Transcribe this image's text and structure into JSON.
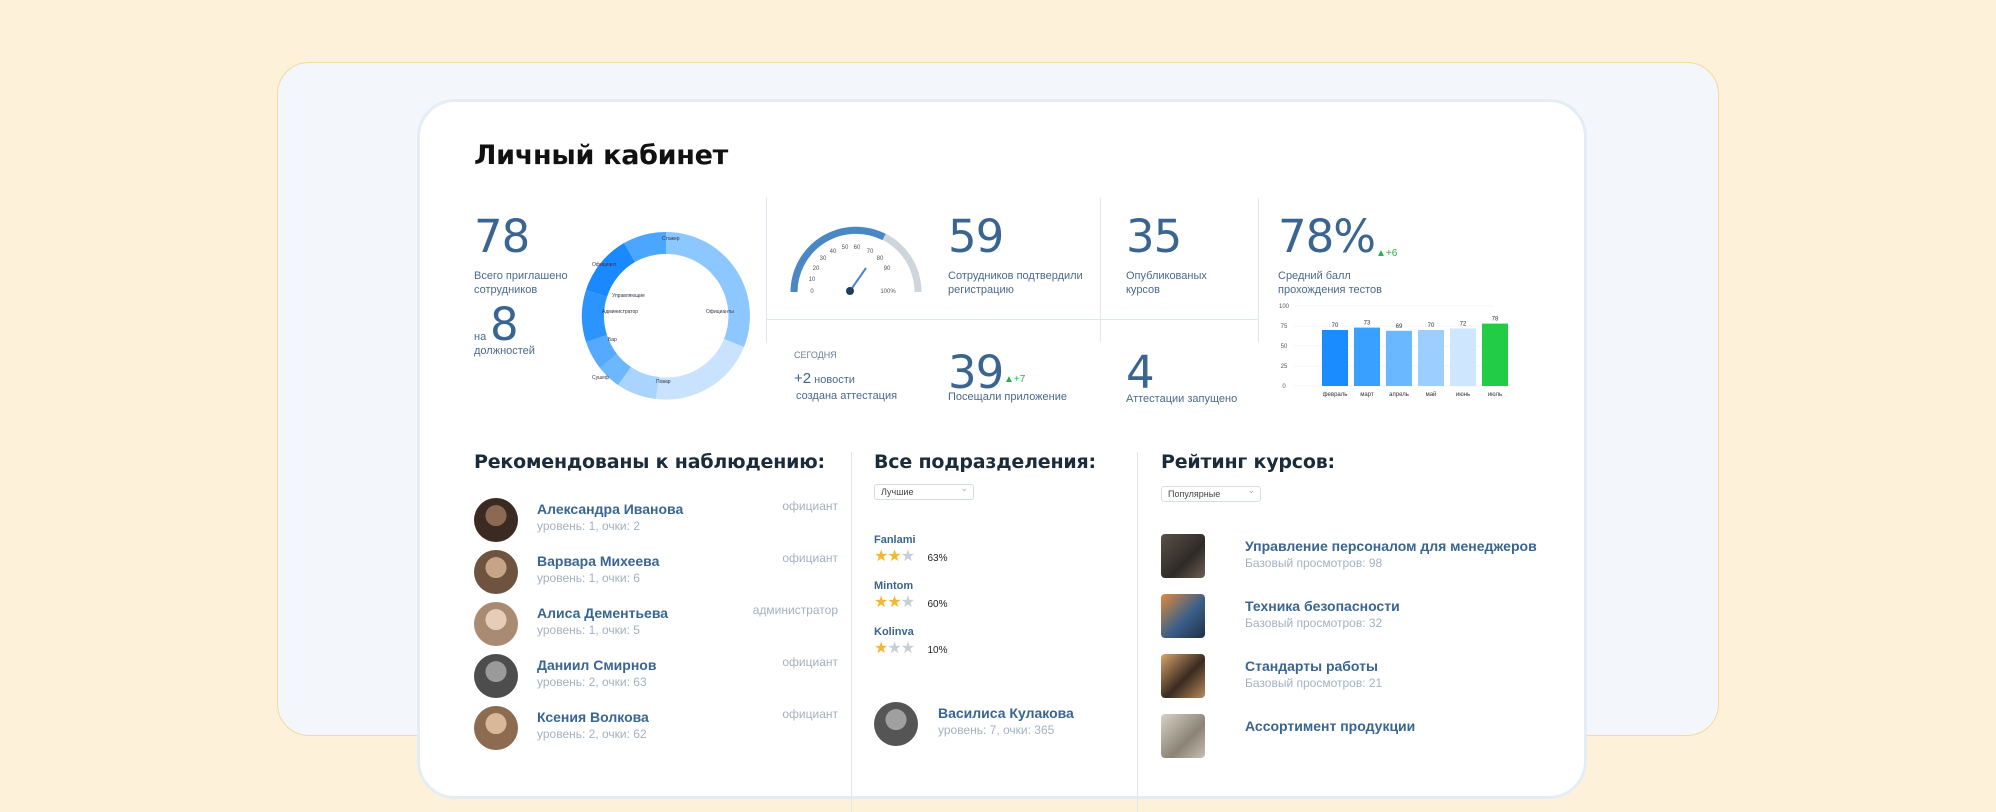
{
  "page": {
    "title": "Личный кабинет"
  },
  "stats": {
    "invited_value": "78",
    "invited_label_1": "Всего приглашено",
    "invited_label_2": "сотрудников",
    "positions_prefix": "на",
    "positions_value": "8",
    "positions_label": "должностей",
    "donut_labels": [
      "Стажер",
      "Официант",
      "Управляющие",
      "Администратор",
      "Бар",
      "Официанты",
      "Повар",
      "Сушеф"
    ],
    "gauge_ticks": [
      "0",
      "10",
      "20",
      "30",
      "40",
      "50",
      "60",
      "70",
      "80",
      "90",
      "100%"
    ],
    "confirmed_value": "59",
    "confirmed_label_1": "Сотрудников подтвердили",
    "confirmed_label_2": "регистрацию",
    "courses_value": "35",
    "courses_label_1": "Опубликованых",
    "courses_label_2": "курсов",
    "score_value": "78%",
    "score_delta": "+6",
    "score_label_1": "Средний балл",
    "score_label_2": "прохождения тестов",
    "today_label": "СЕГОДНЯ",
    "news_value": "+2",
    "news_label": "новости",
    "attest_created": "создана аттестация",
    "visits_value": "39",
    "visits_delta": "+7",
    "visits_label": "Посещали приложение",
    "attest_value": "4",
    "attest_label": "Аттестации запущено"
  },
  "chart_data": {
    "type": "bar",
    "categories": [
      "февраль",
      "март",
      "апрель",
      "май",
      "июнь",
      "июль"
    ],
    "values": [
      70,
      73,
      69,
      70,
      72,
      78
    ],
    "ylim": [
      0,
      100
    ],
    "yticks": [
      "0",
      "25",
      "50",
      "75",
      "100"
    ],
    "colors": [
      "#1a8cff",
      "#3aa0ff",
      "#6ab8ff",
      "#9ccfff",
      "#cfe6ff",
      "#22cc44"
    ]
  },
  "recommended": {
    "title": "Рекомендованы к наблюдению:",
    "people": [
      {
        "name": "Александра Иванова",
        "sub": "уровень: 1, очки: 2",
        "role": "официант"
      },
      {
        "name": "Варвара Михеева",
        "sub": "уровень: 1, очки: 6",
        "role": "официант"
      },
      {
        "name": "Алиса Дементьева",
        "sub": "уровень: 1, очки: 5",
        "role": "администратор"
      },
      {
        "name": "Даниил Смирнов",
        "sub": "уровень: 2, очки: 63",
        "role": "официант"
      },
      {
        "name": "Ксения Волкова",
        "sub": "уровень: 2, очки: 62",
        "role": "официант"
      }
    ]
  },
  "departments": {
    "title": "Все подразделения:",
    "filter": "Лучшие",
    "items": [
      {
        "name": "Fanlami",
        "stars": 2,
        "pct": "63%"
      },
      {
        "name": "Mintom",
        "stars": 2,
        "pct": "60%"
      },
      {
        "name": "Kolinva",
        "stars": 1,
        "pct": "10%"
      }
    ],
    "person": {
      "name": "Василиса Кулакова",
      "sub": "уровень: 7, очки: 365"
    }
  },
  "courses": {
    "title": "Рейтинг курсов:",
    "filter": "Популярные",
    "items": [
      {
        "name": "Управление персоналом для менеджеров",
        "sub": "Базовый просмотров: 98"
      },
      {
        "name": "Техника безопасности",
        "sub": "Базовый просмотров: 32"
      },
      {
        "name": "Стандарты работы",
        "sub": "Базовый просмотров: 21"
      },
      {
        "name": "Ассортимент продукции",
        "sub": ""
      }
    ]
  }
}
